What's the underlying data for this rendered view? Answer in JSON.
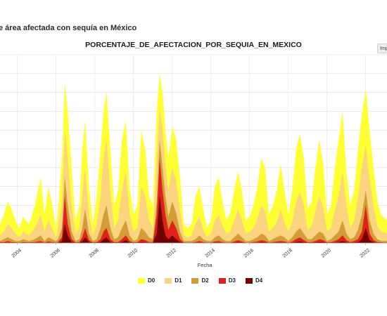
{
  "page": {
    "title": "e área afectada con sequía en México",
    "export_label": "Imp"
  },
  "chart_data": {
    "type": "area",
    "title": "PORCENTAJE_DE_AFECTACION_POR_SEQUIA_EN_MEXICO",
    "xlabel": "Fecha",
    "ylabel": "",
    "x_ticks": [
      "2004",
      "2006",
      "2008",
      "2010",
      "2012",
      "2014",
      "2016",
      "2018",
      "2020",
      "2022"
    ],
    "xlim": [
      2003.1,
      2023.1
    ],
    "ylim": [
      0,
      100
    ],
    "grid": true,
    "legend": "bottom",
    "series_colors": {
      "D0": "#ffff33",
      "D1": "#fbd47f",
      "D2": "#d39c36",
      "D3": "#e0201b",
      "D4": "#730000"
    },
    "series": [
      {
        "name": "D0",
        "x": [
          2003.1,
          2003.3,
          2003.5,
          2003.7,
          2003.9,
          2004.1,
          2004.3,
          2004.6,
          2004.9,
          2005.2,
          2005.4,
          2005.6,
          2005.8,
          2006.0,
          2006.1,
          2006.3,
          2006.45,
          2006.6,
          2006.8,
          2007.0,
          2007.2,
          2007.35,
          2007.5,
          2007.7,
          2007.9,
          2008.1,
          2008.3,
          2008.45,
          2008.6,
          2008.8,
          2009.0,
          2009.2,
          2009.4,
          2009.6,
          2009.8,
          2010.0,
          2010.2,
          2010.4,
          2010.6,
          2010.8,
          2011.0,
          2011.2,
          2011.35,
          2011.5,
          2011.65,
          2011.8,
          2012.0,
          2012.2,
          2012.4,
          2012.6,
          2012.8,
          2013.0,
          2013.2,
          2013.4,
          2013.6,
          2013.8,
          2014.0,
          2014.2,
          2014.4,
          2014.6,
          2014.8,
          2015.0,
          2015.2,
          2015.4,
          2015.6,
          2015.8,
          2016.0,
          2016.2,
          2016.4,
          2016.6,
          2016.8,
          2017.0,
          2017.2,
          2017.4,
          2017.6,
          2017.8,
          2018.0,
          2018.2,
          2018.4,
          2018.6,
          2018.8,
          2019.0,
          2019.2,
          2019.4,
          2019.6,
          2019.8,
          2020.0,
          2020.2,
          2020.4,
          2020.6,
          2020.8,
          2021.0,
          2021.2,
          2021.4,
          2021.6,
          2021.8,
          2022.0,
          2022.2,
          2022.4,
          2022.6,
          2022.8,
          2023.1
        ],
        "values": [
          10,
          15,
          22,
          18,
          12,
          8,
          14,
          10,
          20,
          35,
          15,
          30,
          20,
          8,
          18,
          45,
          85,
          70,
          40,
          12,
          20,
          50,
          65,
          30,
          10,
          25,
          50,
          70,
          80,
          50,
          20,
          28,
          55,
          65,
          30,
          15,
          20,
          60,
          50,
          25,
          20,
          70,
          90,
          80,
          60,
          45,
          62,
          55,
          35,
          10,
          8,
          10,
          25,
          30,
          18,
          8,
          12,
          30,
          35,
          22,
          12,
          16,
          28,
          38,
          28,
          12,
          14,
          20,
          30,
          45,
          40,
          15,
          20,
          28,
          42,
          28,
          15,
          28,
          50,
          58,
          45,
          18,
          22,
          40,
          55,
          42,
          15,
          20,
          40,
          55,
          70,
          38,
          20,
          28,
          50,
          68,
          82,
          60,
          40,
          22,
          15,
          12
        ]
      },
      {
        "name": "D1",
        "x": [
          2003.1,
          2003.3,
          2003.5,
          2003.7,
          2003.9,
          2004.1,
          2004.3,
          2004.6,
          2004.9,
          2005.2,
          2005.4,
          2005.6,
          2005.8,
          2006.0,
          2006.1,
          2006.3,
          2006.45,
          2006.6,
          2006.8,
          2007.0,
          2007.2,
          2007.35,
          2007.5,
          2007.7,
          2007.9,
          2008.1,
          2008.3,
          2008.45,
          2008.6,
          2008.8,
          2009.0,
          2009.2,
          2009.4,
          2009.6,
          2009.8,
          2010.0,
          2010.2,
          2010.4,
          2010.6,
          2010.8,
          2011.0,
          2011.2,
          2011.35,
          2011.5,
          2011.65,
          2011.8,
          2012.0,
          2012.2,
          2012.4,
          2012.6,
          2012.8,
          2013.0,
          2013.2,
          2013.4,
          2013.6,
          2013.8,
          2014.0,
          2014.2,
          2014.4,
          2014.6,
          2014.8,
          2015.0,
          2015.2,
          2015.4,
          2015.6,
          2015.8,
          2016.0,
          2016.2,
          2016.4,
          2016.6,
          2016.8,
          2017.0,
          2017.2,
          2017.4,
          2017.6,
          2017.8,
          2018.0,
          2018.2,
          2018.4,
          2018.6,
          2018.8,
          2019.0,
          2019.2,
          2019.4,
          2019.6,
          2019.8,
          2020.0,
          2020.2,
          2020.4,
          2020.6,
          2020.8,
          2021.0,
          2021.2,
          2021.4,
          2021.6,
          2021.8,
          2022.0,
          2022.2,
          2022.4,
          2022.6,
          2022.8,
          2023.1
        ],
        "values": [
          4,
          6,
          10,
          8,
          5,
          3,
          6,
          4,
          8,
          15,
          6,
          12,
          8,
          3,
          8,
          22,
          60,
          45,
          20,
          5,
          8,
          25,
          40,
          15,
          4,
          10,
          25,
          45,
          55,
          28,
          8,
          12,
          28,
          38,
          15,
          6,
          8,
          30,
          25,
          12,
          8,
          45,
          72,
          60,
          42,
          28,
          40,
          33,
          18,
          4,
          3,
          4,
          10,
          14,
          7,
          3,
          5,
          12,
          15,
          9,
          5,
          6,
          12,
          18,
          12,
          5,
          6,
          8,
          13,
          20,
          17,
          6,
          8,
          11,
          18,
          11,
          6,
          11,
          22,
          27,
          20,
          7,
          9,
          17,
          25,
          19,
          6,
          8,
          17,
          25,
          38,
          20,
          8,
          12,
          24,
          40,
          52,
          34,
          20,
          9,
          6,
          5
        ]
      },
      {
        "name": "D2",
        "x": [
          2003.1,
          2003.3,
          2003.5,
          2003.7,
          2003.9,
          2004.1,
          2004.3,
          2004.6,
          2004.9,
          2005.2,
          2005.4,
          2005.6,
          2005.8,
          2006.0,
          2006.1,
          2006.3,
          2006.45,
          2006.6,
          2006.8,
          2007.0,
          2007.2,
          2007.35,
          2007.5,
          2007.7,
          2007.9,
          2008.1,
          2008.3,
          2008.45,
          2008.6,
          2008.8,
          2009.0,
          2009.2,
          2009.4,
          2009.6,
          2009.8,
          2010.0,
          2010.2,
          2010.4,
          2010.6,
          2010.8,
          2011.0,
          2011.2,
          2011.35,
          2011.5,
          2011.65,
          2011.8,
          2012.0,
          2012.2,
          2012.4,
          2012.6,
          2012.8,
          2013.0,
          2013.2,
          2013.4,
          2013.6,
          2013.8,
          2014.0,
          2014.2,
          2014.4,
          2014.6,
          2014.8,
          2015.0,
          2015.2,
          2015.4,
          2015.6,
          2015.8,
          2016.0,
          2016.2,
          2016.4,
          2016.6,
          2016.8,
          2017.0,
          2017.2,
          2017.4,
          2017.6,
          2017.8,
          2018.0,
          2018.2,
          2018.4,
          2018.6,
          2018.8,
          2019.0,
          2019.2,
          2019.4,
          2019.6,
          2019.8,
          2020.0,
          2020.2,
          2020.4,
          2020.6,
          2020.8,
          2021.0,
          2021.2,
          2021.4,
          2021.6,
          2021.8,
          2022.0,
          2022.2,
          2022.4,
          2022.6,
          2022.8,
          2023.1
        ],
        "values": [
          1,
          2,
          3,
          2,
          1,
          1,
          2,
          1,
          2,
          4,
          1,
          3,
          2,
          1,
          2,
          8,
          35,
          20,
          6,
          1,
          2,
          8,
          18,
          5,
          1,
          2,
          8,
          15,
          20,
          8,
          2,
          3,
          8,
          12,
          4,
          1,
          2,
          8,
          6,
          3,
          2,
          22,
          55,
          40,
          25,
          14,
          22,
          16,
          6,
          1,
          1,
          1,
          2,
          4,
          2,
          1,
          1,
          3,
          4,
          2,
          1,
          1,
          3,
          5,
          3,
          1,
          1,
          2,
          3,
          5,
          4,
          1,
          2,
          3,
          4,
          3,
          1,
          3,
          6,
          8,
          5,
          2,
          2,
          4,
          6,
          5,
          1,
          2,
          4,
          6,
          12,
          5,
          2,
          3,
          7,
          15,
          28,
          12,
          5,
          2,
          1,
          1
        ]
      },
      {
        "name": "D3",
        "x": [
          2003.1,
          2003.3,
          2003.5,
          2003.7,
          2003.9,
          2004.1,
          2004.3,
          2004.6,
          2004.9,
          2005.2,
          2005.4,
          2005.6,
          2005.8,
          2006.0,
          2006.1,
          2006.3,
          2006.45,
          2006.6,
          2006.8,
          2007.0,
          2007.2,
          2007.35,
          2007.5,
          2007.7,
          2007.9,
          2008.1,
          2008.3,
          2008.45,
          2008.6,
          2008.8,
          2009.0,
          2009.2,
          2009.4,
          2009.6,
          2009.8,
          2010.0,
          2010.2,
          2010.4,
          2010.6,
          2010.8,
          2011.0,
          2011.2,
          2011.35,
          2011.5,
          2011.65,
          2011.8,
          2012.0,
          2012.2,
          2012.4,
          2012.6,
          2012.8,
          2013.0,
          2013.2,
          2013.4,
          2013.6,
          2013.8,
          2014.0,
          2014.2,
          2014.4,
          2014.6,
          2014.8,
          2015.0,
          2015.2,
          2015.4,
          2015.6,
          2015.8,
          2016.0,
          2016.2,
          2016.4,
          2016.6,
          2016.8,
          2017.0,
          2017.2,
          2017.4,
          2017.6,
          2017.8,
          2018.0,
          2018.2,
          2018.4,
          2018.6,
          2018.8,
          2019.0,
          2019.2,
          2019.4,
          2019.6,
          2019.8,
          2020.0,
          2020.2,
          2020.4,
          2020.6,
          2020.8,
          2021.0,
          2021.2,
          2021.4,
          2021.6,
          2021.8,
          2022.0,
          2022.2,
          2022.4,
          2022.6,
          2022.8,
          2023.1
        ],
        "values": [
          0.5,
          0.5,
          1,
          0.5,
          0.3,
          0.2,
          0.5,
          0.3,
          0.5,
          1,
          0.3,
          0.8,
          0.5,
          0.2,
          0.5,
          3,
          25,
          10,
          2,
          0.3,
          0.5,
          3,
          8,
          1.5,
          0.3,
          0.5,
          2,
          6,
          8,
          2,
          0.5,
          0.5,
          2,
          4,
          1,
          0.3,
          0.5,
          2,
          1.5,
          0.5,
          0.5,
          15,
          45,
          28,
          15,
          7,
          12,
          8,
          2,
          0.3,
          0.2,
          0.2,
          0.5,
          1,
          0.5,
          0.2,
          0.2,
          0.8,
          1,
          0.5,
          0.2,
          0.2,
          0.8,
          1.5,
          0.8,
          0.2,
          0.2,
          0.5,
          0.8,
          1.5,
          1,
          0.2,
          0.5,
          0.8,
          1,
          0.8,
          0.2,
          0.8,
          2,
          3,
          1.5,
          0.5,
          0.5,
          1,
          2,
          1.5,
          0.3,
          0.5,
          1,
          2,
          4,
          1.5,
          0.5,
          1,
          2,
          6,
          20,
          5,
          1.5,
          0.5,
          0.3,
          0.2
        ]
      },
      {
        "name": "D4",
        "x": [
          2003.1,
          2003.3,
          2003.5,
          2003.7,
          2003.9,
          2004.1,
          2004.3,
          2004.6,
          2004.9,
          2005.2,
          2005.4,
          2005.6,
          2005.8,
          2006.0,
          2006.1,
          2006.3,
          2006.45,
          2006.6,
          2006.8,
          2007.0,
          2007.2,
          2007.35,
          2007.5,
          2007.7,
          2007.9,
          2008.1,
          2008.3,
          2008.45,
          2008.6,
          2008.8,
          2009.0,
          2009.2,
          2009.4,
          2009.6,
          2009.8,
          2010.0,
          2010.2,
          2010.4,
          2010.6,
          2010.8,
          2011.0,
          2011.2,
          2011.35,
          2011.5,
          2011.65,
          2011.8,
          2012.0,
          2012.2,
          2012.4,
          2012.6,
          2012.8,
          2013.0,
          2013.2,
          2013.4,
          2013.6,
          2013.8,
          2014.0,
          2014.2,
          2014.4,
          2014.6,
          2014.8,
          2015.0,
          2015.2,
          2015.4,
          2015.6,
          2015.8,
          2016.0,
          2016.2,
          2016.4,
          2016.6,
          2016.8,
          2017.0,
          2017.2,
          2017.4,
          2017.6,
          2017.8,
          2018.0,
          2018.2,
          2018.4,
          2018.6,
          2018.8,
          2019.0,
          2019.2,
          2019.4,
          2019.6,
          2019.8,
          2020.0,
          2020.2,
          2020.4,
          2020.6,
          2020.8,
          2021.0,
          2021.2,
          2021.4,
          2021.6,
          2021.8,
          2022.0,
          2022.2,
          2022.4,
          2022.6,
          2022.8,
          2023.1
        ],
        "values": [
          0.1,
          0.1,
          0.2,
          0.1,
          0.1,
          0,
          0.1,
          0.1,
          0.1,
          0.2,
          0.1,
          0.2,
          0.1,
          0,
          0.1,
          1,
          10,
          4,
          0.5,
          0.1,
          0.1,
          1,
          3,
          0.5,
          0.1,
          0.1,
          0.5,
          2,
          3,
          0.5,
          0.1,
          0.1,
          0.5,
          1.5,
          0.3,
          0.1,
          0.1,
          0.5,
          0.3,
          0.1,
          0.1,
          5,
          25,
          12,
          4,
          2,
          4,
          2,
          0.5,
          0.1,
          0,
          0,
          0.1,
          0.2,
          0.1,
          0,
          0,
          0.2,
          0.3,
          0.1,
          0,
          0,
          0.2,
          0.4,
          0.2,
          0,
          0,
          0.1,
          0.2,
          0.4,
          0.3,
          0,
          0.1,
          0.2,
          0.3,
          0.2,
          0,
          0.2,
          0.5,
          0.8,
          0.4,
          0.1,
          0.1,
          0.3,
          0.5,
          0.4,
          0.1,
          0.1,
          0.3,
          0.5,
          1,
          0.4,
          0.1,
          0.3,
          0.5,
          2,
          8,
          1.5,
          0.4,
          0.1,
          0.1,
          0
        ]
      }
    ]
  }
}
